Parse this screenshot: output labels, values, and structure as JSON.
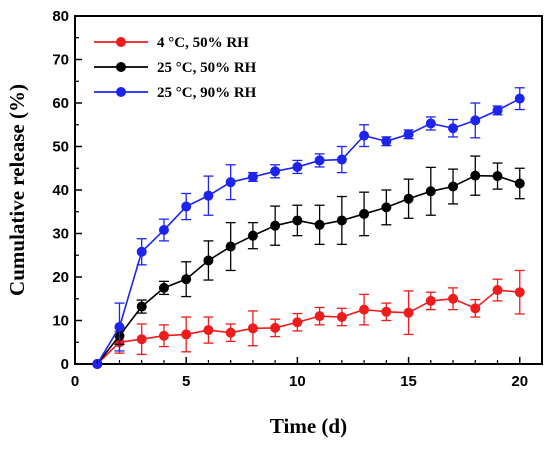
{
  "chart_data": {
    "type": "line",
    "xlabel": "Time (d)",
    "ylabel": "Cumulative release (%)",
    "xlim": [
      0,
      21
    ],
    "ylim": [
      0,
      80
    ],
    "xticks": [
      0,
      5,
      10,
      15,
      20
    ],
    "yticks": [
      0,
      10,
      20,
      30,
      40,
      50,
      60,
      70,
      80
    ],
    "grid": false,
    "legend_position": "top-left",
    "x": [
      1,
      2,
      3,
      4,
      5,
      6,
      7,
      8,
      9,
      10,
      11,
      12,
      13,
      14,
      15,
      16,
      17,
      18,
      19,
      20
    ],
    "series": [
      {
        "name": "4 °C, 50% RH",
        "color": "#ee1c1c",
        "values": [
          0,
          5,
          5.7,
          6.5,
          6.8,
          7.8,
          7.2,
          8.2,
          8.3,
          9.6,
          11,
          10.8,
          12.5,
          12,
          11.8,
          14.5,
          15,
          12.8,
          17,
          16.5
        ],
        "errors": [
          0,
          2.5,
          3.5,
          2.5,
          4,
          3,
          2,
          4,
          2,
          2,
          2,
          2,
          3.5,
          2,
          5,
          2,
          2.5,
          2,
          2.5,
          5
        ]
      },
      {
        "name": "25 °C, 50% RH",
        "color": "#000000",
        "values": [
          0,
          6.5,
          13.2,
          17.5,
          19.5,
          23.8,
          27,
          29.5,
          31.8,
          33,
          32,
          33,
          34.5,
          36,
          38,
          39.7,
          40.8,
          43.3,
          43.2,
          41.5
        ],
        "errors": [
          0,
          2,
          1.5,
          1.5,
          4,
          4.5,
          5.5,
          3,
          4.5,
          3.5,
          4.5,
          5.5,
          5,
          4,
          4.5,
          5.5,
          4,
          4.5,
          3,
          3.5
        ]
      },
      {
        "name": "25 °C, 90% RH",
        "color": "#1c24ee",
        "values": [
          0,
          8.5,
          25.8,
          30.8,
          36.2,
          38.7,
          41.8,
          43,
          44.3,
          45.3,
          46.8,
          47,
          52.5,
          51.2,
          52.8,
          55.3,
          54.2,
          56,
          58.3,
          61
        ],
        "errors": [
          0,
          5.5,
          3,
          2.5,
          3,
          4.5,
          4,
          1,
          1.5,
          1.5,
          1.5,
          3,
          2.5,
          1,
          1,
          1.5,
          2,
          4,
          1,
          2.5
        ]
      }
    ]
  }
}
